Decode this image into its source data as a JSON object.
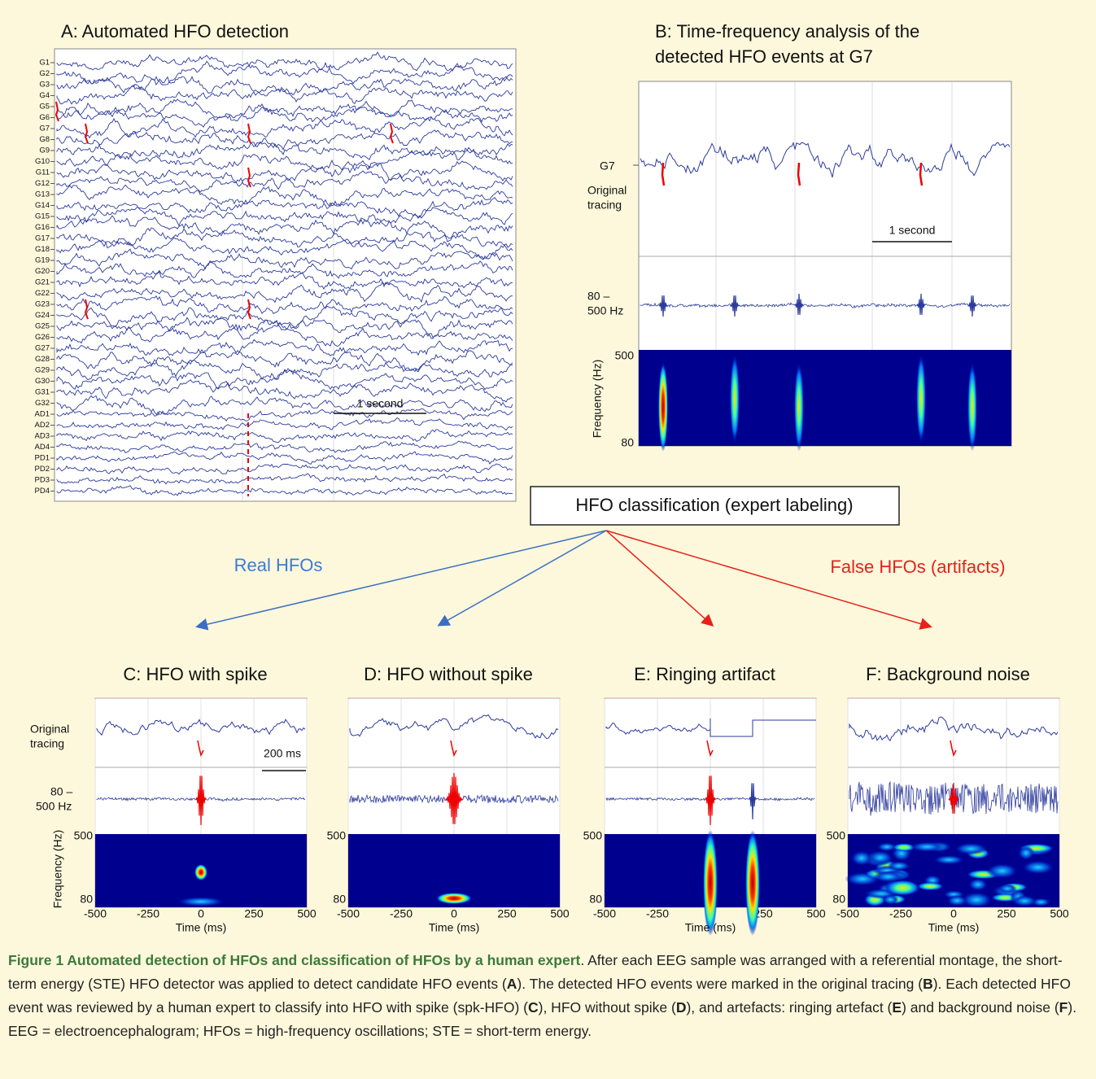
{
  "panel_a": {
    "title": "A: Automated HFO detection",
    "channels": [
      "G1",
      "G2",
      "G3",
      "G4",
      "G5",
      "G6",
      "G7",
      "G8",
      "G9",
      "G10",
      "G11",
      "G12",
      "G13",
      "G14",
      "G15",
      "G16",
      "G17",
      "G18",
      "G19",
      "G20",
      "G21",
      "G22",
      "G23",
      "G24",
      "G25",
      "G26",
      "G27",
      "G28",
      "G29",
      "G30",
      "G31",
      "G32",
      "AD1",
      "AD2",
      "AD3",
      "AD4",
      "PD1",
      "PD2",
      "PD3",
      "PD4"
    ],
    "scale_label": "1 second"
  },
  "panel_b": {
    "title_lines": [
      "B: Time-frequency analysis of the",
      "detected HFO events at G7"
    ],
    "channel": "G7",
    "original_label": [
      "Original",
      "tracing"
    ],
    "scale_label": "1 second",
    "filter_label": [
      "80 –",
      "500 Hz"
    ],
    "freq_axis_label": "Frequency (Hz)",
    "freq_ticks": [
      500,
      80
    ]
  },
  "classification": {
    "title": "HFO classification (expert labeling)",
    "real": "Real HFOs",
    "false": "False HFOs (artifacts)"
  },
  "examples": {
    "original_label": [
      "Original",
      "tracing"
    ],
    "filter_label": [
      "80 –",
      "500 Hz"
    ],
    "freq_axis_label": "Frequency (Hz)",
    "freq_ticks": [
      500,
      80
    ],
    "time_axis_label": "Time (ms)",
    "xlim": [
      -500,
      500
    ],
    "xticks": [
      -500,
      -250,
      0,
      250,
      500
    ],
    "scale_label": "200 ms",
    "panels": [
      {
        "title": "C: HFO with spike"
      },
      {
        "title": "D: HFO without spike"
      },
      {
        "title": "E: Ringing artifact"
      },
      {
        "title": "F: Background noise"
      }
    ]
  },
  "caption": {
    "title": "Figure 1 Automated detection of HFOs and classification of HFOs by a human expert",
    "body": [
      ". After each EEG sample was arranged with a referential montage, the short-term energy (STE) HFO detector was applied to detect candidate HFO events (",
      "A",
      "). The detected HFO events were marked in the original tracing (",
      "B",
      "). Each detected HFO event was reviewed by a human expert to classify into HFO with spike (spk-HFO) (",
      "C",
      "), HFO without spike (",
      "D",
      "), and artefacts: ringing artefact (",
      "E",
      ") and background noise (",
      "F",
      "). EEG = electroencephalogram; HFOs = high-frequency oscillations; STE = short-term energy."
    ]
  }
}
